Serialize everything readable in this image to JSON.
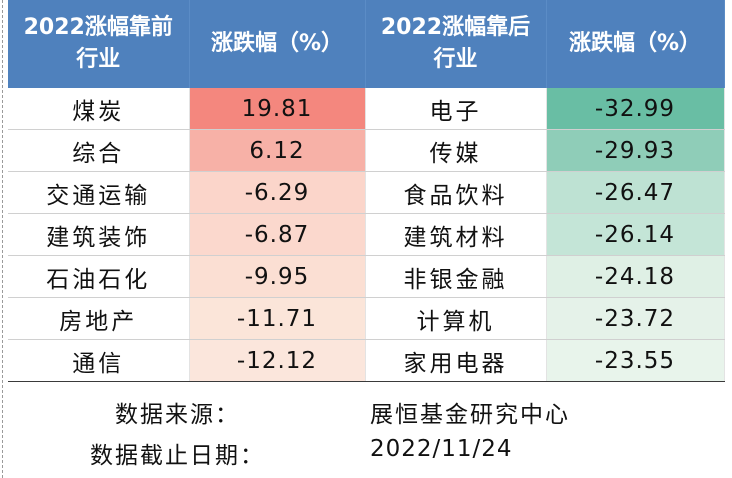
{
  "header": {
    "top_industry": "2022涨幅靠前\n行业",
    "top_change": "涨跌幅（%）",
    "bottom_industry": "2022涨幅靠后\n行业",
    "bottom_change": "涨跌幅（%）"
  },
  "rows": [
    {
      "top": "煤炭",
      "top_val": "19.81",
      "top_color": "#f4877e",
      "bottom": "电子",
      "bottom_val": "-32.99",
      "bottom_color": "#69bea4"
    },
    {
      "top": "综合",
      "top_val": "6.12",
      "top_color": "#f7b1a7",
      "bottom": "传媒",
      "bottom_val": "-29.93",
      "bottom_color": "#8fcdb8"
    },
    {
      "top": "交通运输",
      "top_val": "-6.29",
      "top_color": "#fbd5ca",
      "bottom": "食品饮料",
      "bottom_val": "-26.47",
      "bottom_color": "#bee2d3"
    },
    {
      "top": "建筑装饰",
      "top_val": "-6.87",
      "top_color": "#fbd8cd",
      "bottom": "建筑材料",
      "bottom_val": "-26.14",
      "bottom_color": "#c4e5d7"
    },
    {
      "top": "石油石化",
      "top_val": "-9.95",
      "top_color": "#fbdfd3",
      "bottom": "非银金融",
      "bottom_val": "-24.18",
      "bottom_color": "#dff0e5"
    },
    {
      "top": "房地产",
      "top_val": "-11.71",
      "top_color": "#fbe5d9",
      "bottom": "计算机",
      "bottom_val": "-23.72",
      "bottom_color": "#e5f2e9"
    },
    {
      "top": "通信",
      "top_val": "-12.12",
      "top_color": "#fbe6dc",
      "bottom": "家用电器",
      "bottom_val": "-23.55",
      "bottom_color": "#e8f4eb"
    }
  ],
  "footer": {
    "source_label": "数据来源：",
    "source_value": "展恒基金研究中心",
    "date_label": "数据截止日期：",
    "date_value": "2022/11/24"
  }
}
